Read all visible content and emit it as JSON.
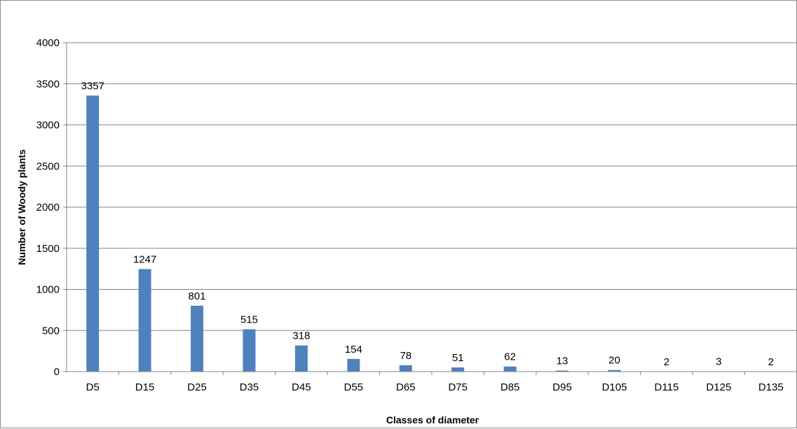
{
  "chart_data": {
    "type": "bar",
    "title": "",
    "xlabel": "Classes of diameter",
    "ylabel": "Number of Woody plants",
    "categories": [
      "D5",
      "D15",
      "D25",
      "D35",
      "D45",
      "D55",
      "D65",
      "D75",
      "D85",
      "D95",
      "D105",
      "D115",
      "D125",
      "D135"
    ],
    "values": [
      3357,
      1247,
      801,
      515,
      318,
      154,
      78,
      51,
      62,
      13,
      20,
      2,
      3,
      2
    ],
    "ylim": [
      0,
      4000
    ],
    "yticks": [
      0,
      500,
      1000,
      1500,
      2000,
      2500,
      3000,
      3500,
      4000
    ],
    "grid": true,
    "legend": "none",
    "data_labels": true,
    "colors": {
      "bar": "#4f81bd",
      "grid": "#868686",
      "axis": "#868686",
      "border": "#8c8c8c"
    }
  }
}
